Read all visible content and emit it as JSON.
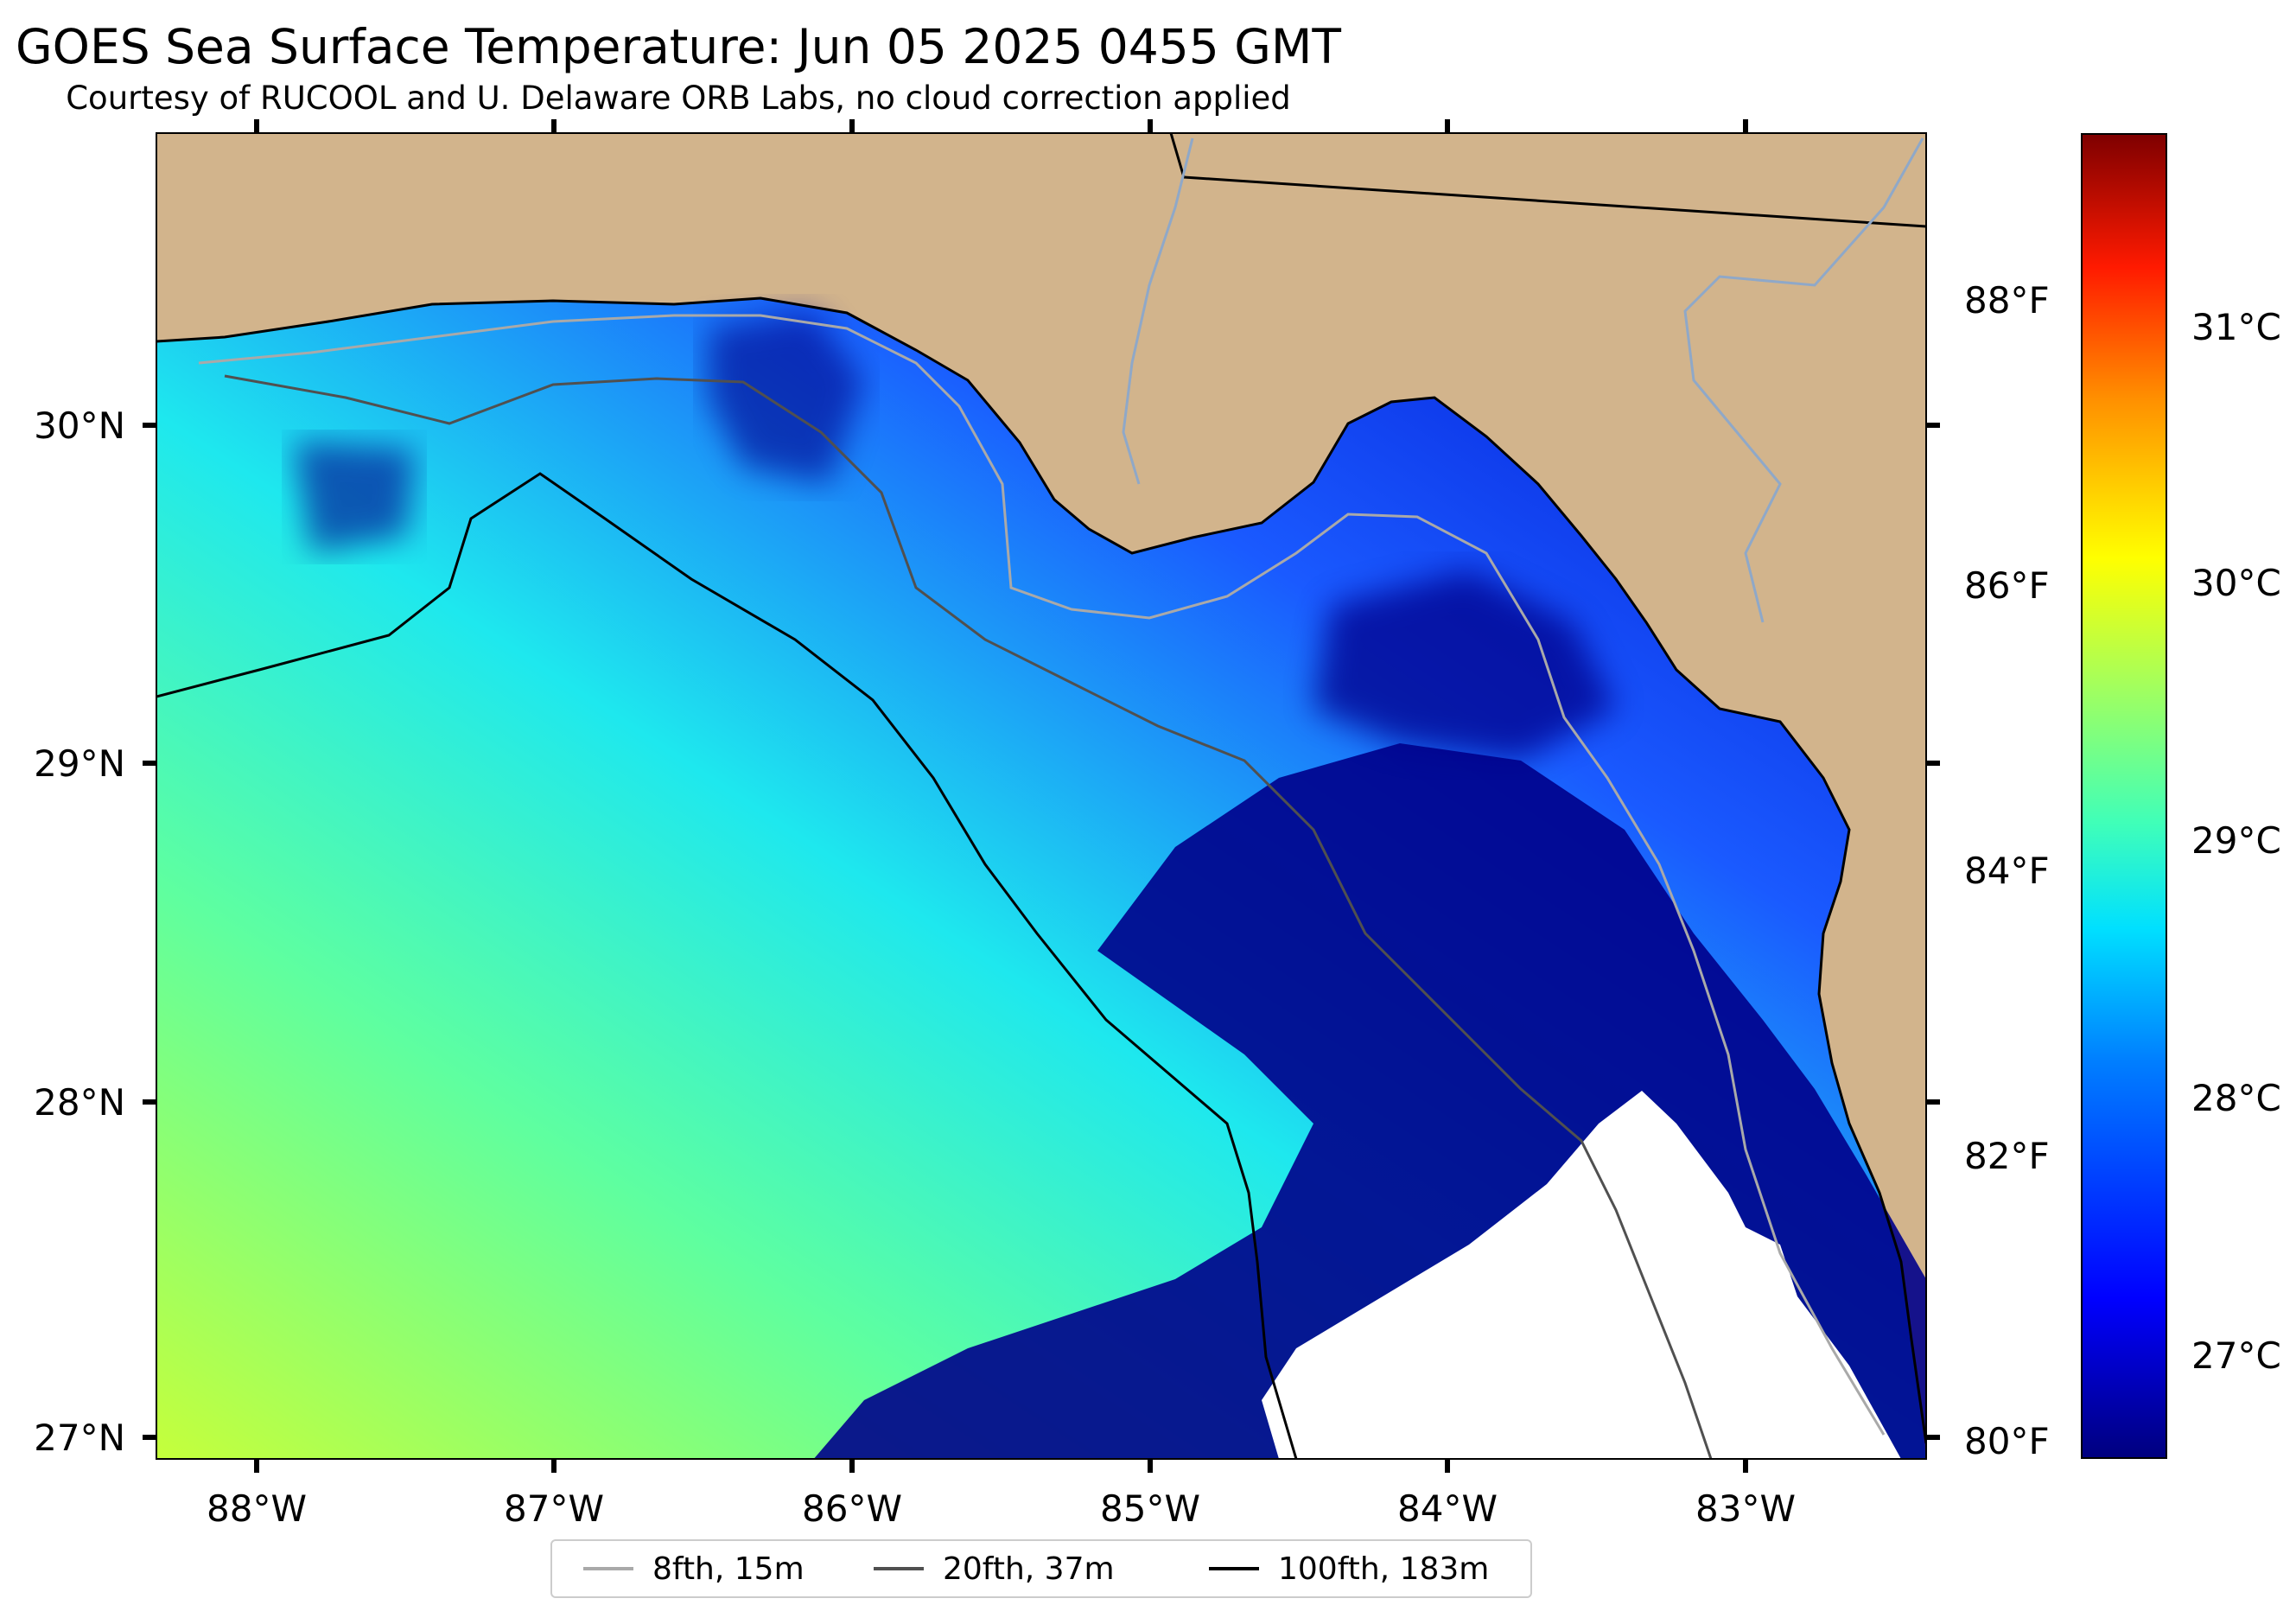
{
  "header": {
    "title": "GOES Sea Surface Temperature: Jun 05 2025 0455 GMT",
    "subtitle": "Courtesy of RUCOOL and U. Delaware ORB Labs, no cloud correction applied"
  },
  "map": {
    "lon_labels": [
      "88°W",
      "87°W",
      "86°W",
      "85°W",
      "84°W",
      "83°W"
    ],
    "lat_labels": [
      "30°N",
      "29°N",
      "28°N",
      "27°N"
    ],
    "lon_range": [
      -88.33,
      -82.38
    ],
    "lat_range": [
      26.93,
      30.85
    ],
    "colors": {
      "land": "#d2b48c",
      "ocean_cold": "#00008b",
      "no_data": "#ffffff"
    }
  },
  "colorbar": {
    "fahrenheit_labels": [
      "88°F",
      "86°F",
      "84°F",
      "82°F",
      "80°F"
    ],
    "celsius_labels": [
      "31°C",
      "30°C",
      "29°C",
      "28°C",
      "27°C"
    ],
    "colormap": "jet"
  },
  "legend": {
    "items": [
      {
        "label": "8fth, 15m",
        "color": "#a9a9a9"
      },
      {
        "label": "20fth, 37m",
        "color": "#505050"
      },
      {
        "label": "100fth, 183m",
        "color": "#000000"
      }
    ]
  }
}
